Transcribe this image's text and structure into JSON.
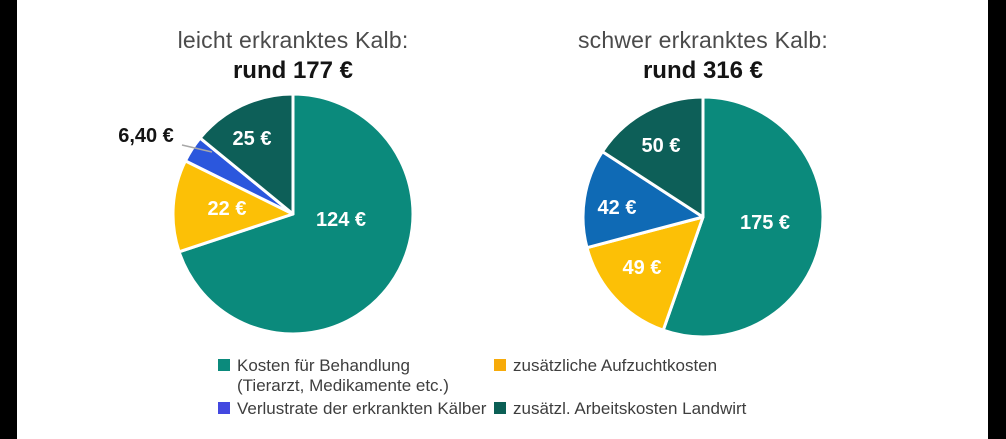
{
  "frame": {
    "background": "#ffffff",
    "edge_bar_color": "#000000"
  },
  "charts": [
    {
      "title": "leicht erkranktes Kalb:",
      "amount": "rund 177 €"
    },
    {
      "title": "schwer erkranktes Kalb:",
      "amount": "rund 316 €"
    }
  ],
  "chart_data": [
    {
      "type": "pie",
      "title": "leicht erkranktes Kalb:",
      "total_label": "rund 177 €",
      "start_angle_deg": 0,
      "clockwise": true,
      "slices": [
        {
          "name": "Kosten für Behandlung (Tierarzt, Medikamente etc.)",
          "value": 124,
          "label": "124 €",
          "color": "#0b8a7c",
          "label_color": "#ffffff",
          "label_pos": [
            173,
            131
          ]
        },
        {
          "name": "zusätzliche Aufzuchtkosten",
          "value": 22,
          "label": "22 €",
          "color": "#fcc006",
          "label_color": "#ffffff",
          "label_pos": [
            59,
            120
          ]
        },
        {
          "name": "Verlustrate der erkrankten Kälber",
          "value": 6.4,
          "label": "6,40 €",
          "color": "#2b57dd",
          "label_color": "#141414",
          "label_pos": [
            -22,
            47
          ],
          "label_outside": true,
          "callout": [
            [
              14,
              56
            ],
            [
              44,
              63
            ]
          ]
        },
        {
          "name": "zusätzl. Arbeitskosten Landwirt",
          "value": 25,
          "label": "25 €",
          "color": "#0d5f58",
          "label_color": "#ffffff",
          "label_pos": [
            84,
            50
          ]
        }
      ]
    },
    {
      "type": "pie",
      "title": "schwer erkranktes Kalb:",
      "total_label": "rund 316 €",
      "start_angle_deg": 0,
      "clockwise": true,
      "slices": [
        {
          "name": "Kosten für Behandlung (Tierarzt, Medikamente etc.)",
          "value": 175,
          "label": "175 €",
          "color": "#0b8a7c",
          "label_color": "#ffffff",
          "label_pos": [
            187,
            131
          ]
        },
        {
          "name": "zusätzliche Aufzuchtkosten",
          "value": 49,
          "label": "49 €",
          "color": "#fcc006",
          "label_color": "#ffffff",
          "label_pos": [
            64,
            176
          ]
        },
        {
          "name": "Verlustrate der erkrankten Kälber",
          "value": 42,
          "label": "42 €",
          "color": "#0f6ab5",
          "label_color": "#ffffff",
          "label_pos": [
            39,
            116
          ]
        },
        {
          "name": "zusätzl. Arbeitskosten Landwirt",
          "value": 50,
          "label": "50 €",
          "color": "#0d5f58",
          "label_color": "#ffffff",
          "label_pos": [
            83,
            54
          ]
        }
      ]
    }
  ],
  "legend": {
    "items": [
      {
        "label": "Kosten für Behandlung",
        "label2": "(Tierarzt, Medikamente etc.)",
        "color": "#0b8a7c"
      },
      {
        "label": "zusätzliche Aufzuchtkosten",
        "color": "#f7ab0a"
      },
      {
        "label": "Verlustrate der erkrankten Kälber",
        "color": "#4348e0"
      },
      {
        "label": "zusätzl. Arbeitskosten Landwirt",
        "color": "#0b5f55"
      }
    ]
  },
  "style": {
    "callout_line_color": "#a8a8a8",
    "slice_divider_color": "#ffffff"
  }
}
